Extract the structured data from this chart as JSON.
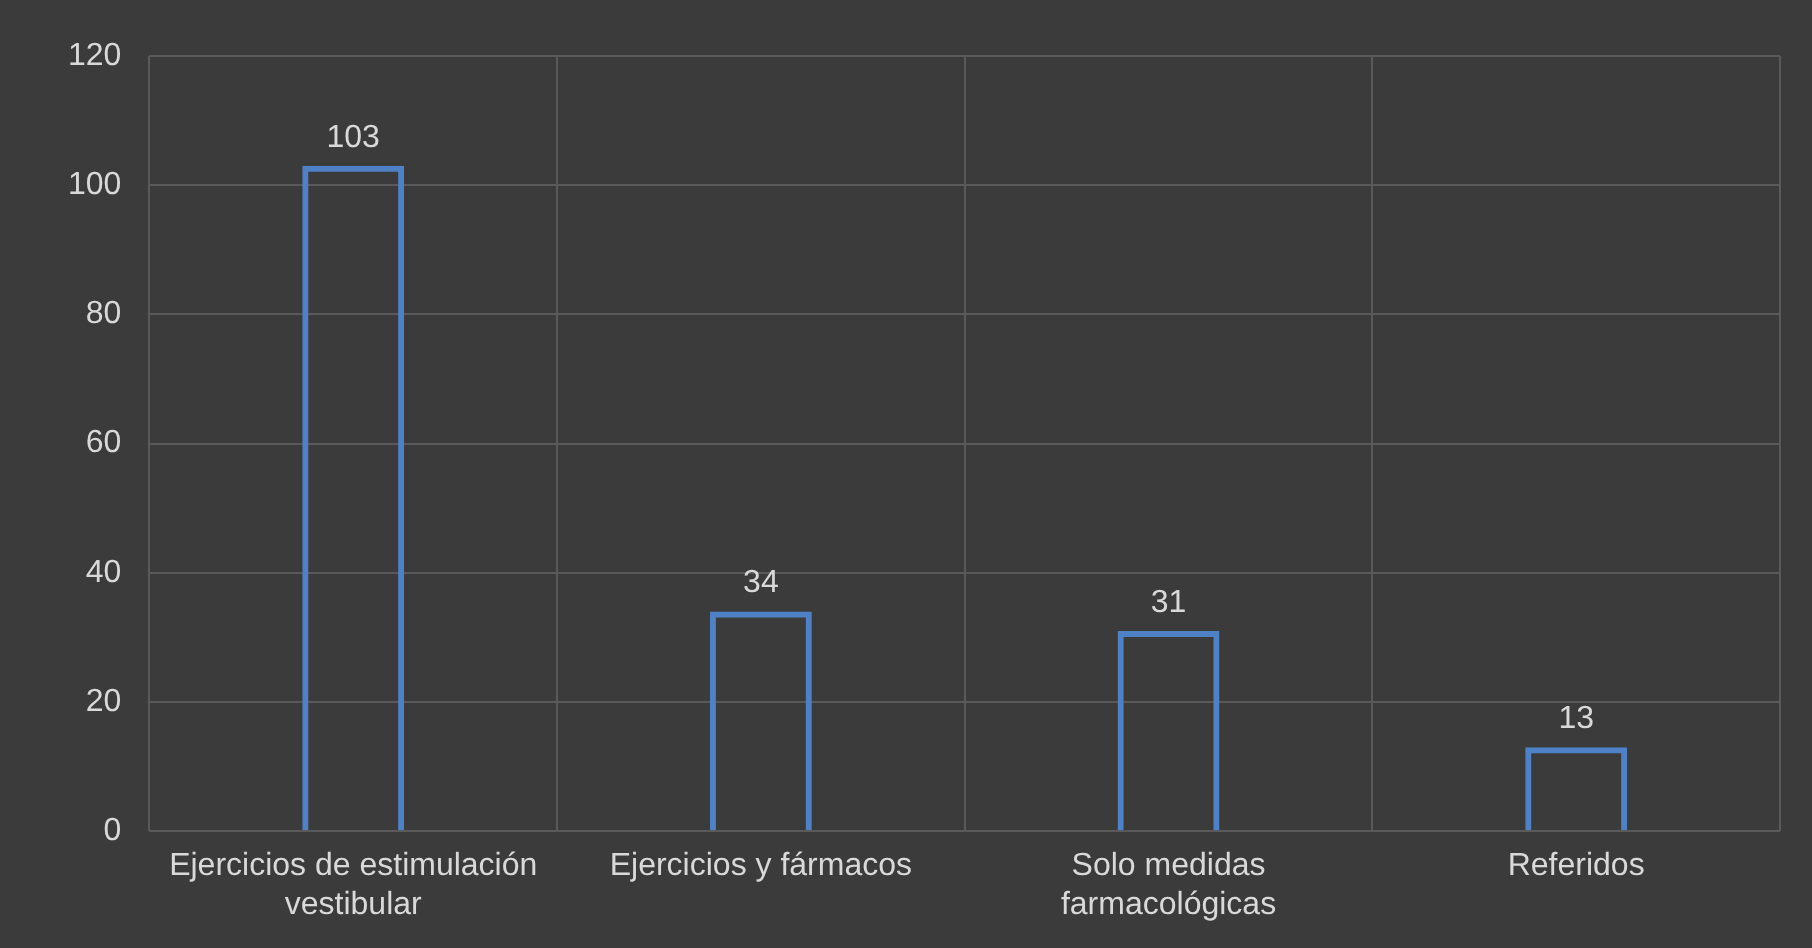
{
  "chart_data": {
    "type": "bar",
    "categories": [
      "Ejercicios de estimulación vestibular",
      "Ejercicios y fármacos",
      "Solo medidas farmacológicas",
      "Referidos"
    ],
    "values": [
      103,
      34,
      31,
      13
    ],
    "color": "#4f81c7",
    "ylim": [
      0,
      120
    ],
    "yticks": [
      0,
      20,
      40,
      60,
      80,
      100,
      120
    ],
    "grid": true,
    "data_labels": true
  }
}
